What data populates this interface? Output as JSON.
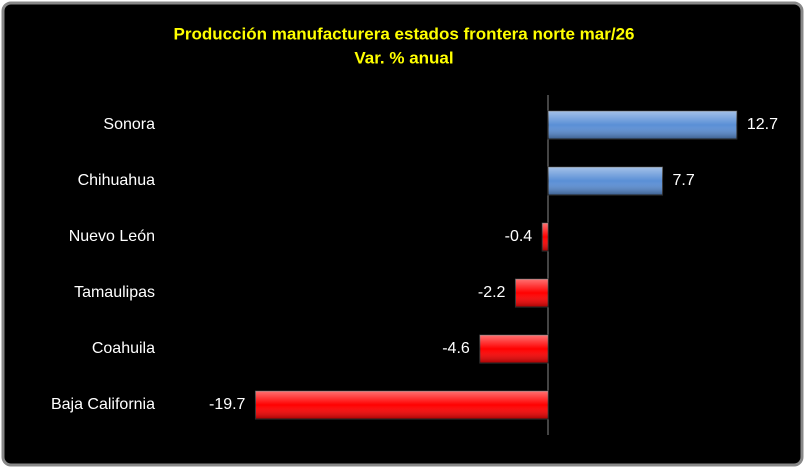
{
  "chart_data": {
    "type": "hbar",
    "title": "Producción manufacturera estados frontera norte mar/26",
    "subtitle": "Var. % anual",
    "categories": [
      "Sonora",
      "Chihuahua",
      "Nuevo León",
      "Tamaulipas",
      "Coahuila",
      "Baja California"
    ],
    "values": [
      12.7,
      7.7,
      -0.4,
      -2.2,
      -4.6,
      -19.7
    ],
    "xlim": [
      -20,
      15
    ],
    "positive_color": "#5a8fd6",
    "negative_color": "#ff0000"
  }
}
